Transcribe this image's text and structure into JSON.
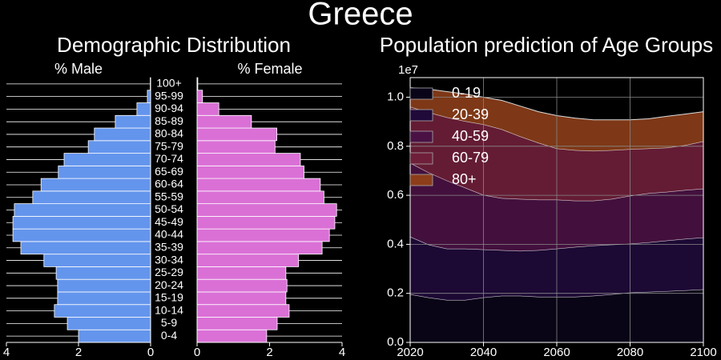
{
  "title": "Greece",
  "chart_data": [
    {
      "type": "pyramid",
      "title": "Demographic Distribution",
      "categories": [
        "0-4",
        "5-9",
        "10-14",
        "15-19",
        "20-24",
        "25-29",
        "30-34",
        "35-39",
        "40-44",
        "45-49",
        "50-54",
        "55-59",
        "60-64",
        "65-69",
        "70-74",
        "75-79",
        "80-84",
        "85-89",
        "90-94",
        "95-99",
        "100+"
      ],
      "series": [
        {
          "name": "% Male",
          "color": "#6495ed",
          "values": [
            2.0,
            2.31,
            2.67,
            2.58,
            2.58,
            2.62,
            2.96,
            3.6,
            3.82,
            3.82,
            3.78,
            3.27,
            3.04,
            2.56,
            2.4,
            1.73,
            1.56,
            0.98,
            0.38,
            0.09,
            0.01
          ]
        },
        {
          "name": "% Female",
          "color": "#da70d6",
          "values": [
            1.92,
            2.21,
            2.54,
            2.45,
            2.48,
            2.45,
            2.8,
            3.45,
            3.65,
            3.8,
            3.85,
            3.5,
            3.4,
            2.95,
            2.85,
            2.15,
            2.2,
            1.5,
            0.6,
            0.15,
            0.02
          ]
        }
      ],
      "xlim": [
        0,
        4
      ],
      "xticks": [
        0,
        2,
        4
      ],
      "grid": true
    },
    {
      "type": "stacked_area",
      "title": "Population prediction of Age Groups",
      "x": [
        2020,
        2025,
        2030,
        2035,
        2040,
        2045,
        2050,
        2055,
        2060,
        2065,
        2070,
        2075,
        2080,
        2085,
        2090,
        2095,
        2100
      ],
      "series": [
        {
          "name": "0-19",
          "color": "#0a0418",
          "values": [
            0.196,
            0.183,
            0.173,
            0.173,
            0.183,
            0.19,
            0.19,
            0.186,
            0.186,
            0.186,
            0.19,
            0.196,
            0.203,
            0.206,
            0.209,
            0.212,
            0.216
          ]
        },
        {
          "name": "20-39",
          "color": "#1f0a3a",
          "values": [
            0.235,
            0.216,
            0.209,
            0.209,
            0.196,
            0.186,
            0.183,
            0.19,
            0.196,
            0.203,
            0.205,
            0.203,
            0.199,
            0.202,
            0.206,
            0.21,
            0.212
          ]
        },
        {
          "name": "40-59",
          "color": "#4a1244",
          "values": [
            0.301,
            0.294,
            0.278,
            0.249,
            0.222,
            0.212,
            0.212,
            0.206,
            0.2,
            0.189,
            0.183,
            0.186,
            0.196,
            0.2,
            0.199,
            0.199,
            0.199
          ]
        },
        {
          "name": "60-79",
          "color": "#6f1f3a",
          "values": [
            0.229,
            0.245,
            0.258,
            0.271,
            0.288,
            0.281,
            0.255,
            0.232,
            0.209,
            0.206,
            0.203,
            0.199,
            0.19,
            0.183,
            0.18,
            0.183,
            0.193
          ]
        },
        {
          "name": "80+",
          "color": "#8c3e1a",
          "values": [
            0.078,
            0.095,
            0.105,
            0.111,
            0.111,
            0.118,
            0.124,
            0.127,
            0.134,
            0.131,
            0.127,
            0.124,
            0.12,
            0.121,
            0.128,
            0.127,
            0.121
          ]
        }
      ],
      "y_offset_label": "1e7",
      "xlim": [
        2020,
        2100
      ],
      "xticks": [
        2020,
        2040,
        2060,
        2080,
        2100
      ],
      "ylim": [
        0,
        1.08
      ],
      "yticks": [
        {
          "value": 0,
          "label": "0.0"
        },
        0.2,
        0.4,
        0.6,
        0.8,
        {
          "value": 1,
          "label": "1.0"
        }
      ],
      "grid": true,
      "legend": "upper left"
    }
  ]
}
